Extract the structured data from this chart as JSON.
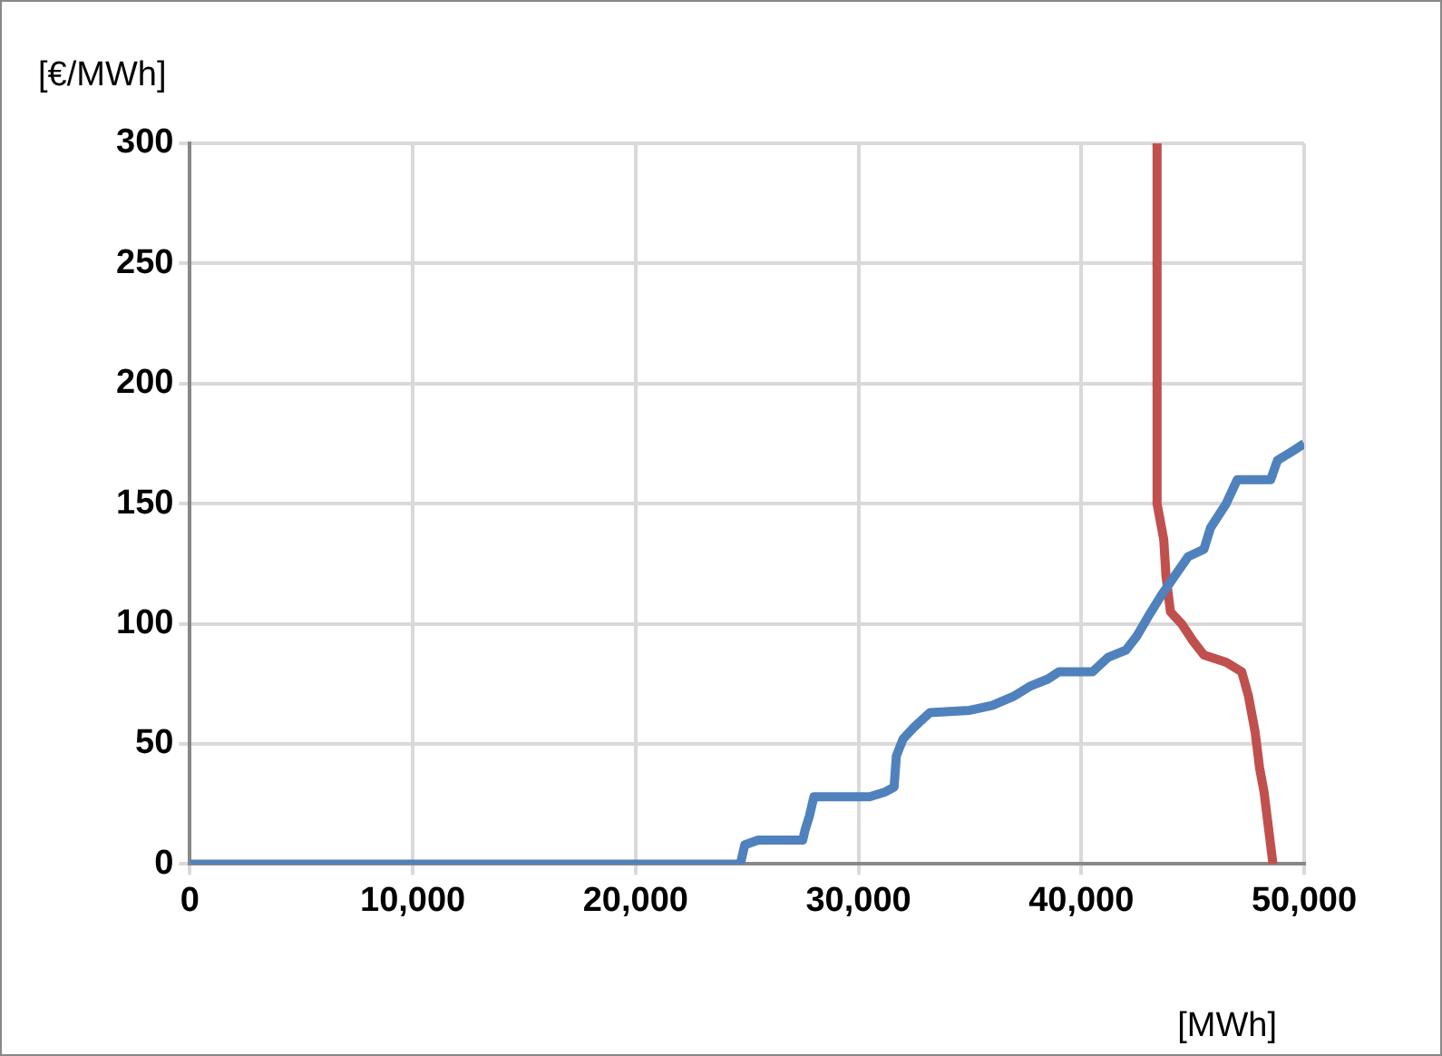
{
  "chart_data": {
    "type": "line",
    "xlabel": "[MWh]",
    "ylabel": "[€/MWh]",
    "xlim": [
      0,
      50000
    ],
    "ylim": [
      0,
      300
    ],
    "xticks": [
      0,
      {
        "value": 10000,
        "label": "10,000"
      },
      {
        "value": 20000,
        "label": "20,000"
      },
      {
        "value": 30000,
        "label": "30,000"
      },
      {
        "value": 40000,
        "label": "40,000"
      },
      {
        "value": 50000,
        "label": "50,000"
      }
    ],
    "yticks": [
      0,
      50,
      100,
      150,
      200,
      250,
      300
    ],
    "grid": true,
    "legend": false,
    "marker": "none",
    "line_style": "solid",
    "series": [
      {
        "color": "#4f81bd",
        "x": [
          0,
          24700,
          24900,
          25500,
          27500,
          27600,
          27800,
          28000,
          30500,
          31200,
          31600,
          31700,
          32000,
          32500,
          33200,
          35000,
          36000,
          37000,
          37700,
          38500,
          39000,
          40500,
          41200,
          42000,
          42500,
          43000,
          43600,
          44200,
          44800,
          45500,
          45800,
          46500,
          47000,
          48500,
          48800,
          49500,
          50000
        ],
        "values": [
          0,
          0,
          8,
          10,
          10,
          14,
          20,
          28,
          28,
          30,
          32,
          45,
          52,
          57,
          63,
          64,
          66,
          70,
          74,
          77,
          80,
          80,
          86,
          89,
          95,
          103,
          112,
          120,
          128,
          131,
          140,
          150,
          160,
          160,
          168,
          172,
          175
        ]
      },
      {
        "color": "#c0504d",
        "x": [
          43400,
          43400,
          43700,
          43800,
          44000,
          44500,
          45000,
          45500,
          46500,
          47200,
          47500,
          47800,
          48000,
          48200,
          48400,
          48600
        ],
        "values": [
          300,
          150,
          135,
          120,
          105,
          100,
          93,
          87,
          84,
          80,
          70,
          55,
          40,
          30,
          15,
          0
        ]
      }
    ]
  }
}
